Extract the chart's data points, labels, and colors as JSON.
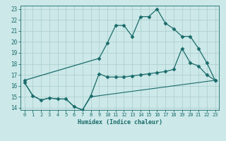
{
  "bg_color": "#cce8e8",
  "grid_color": "#aacccc",
  "line_color": "#1a6b6b",
  "xlabel": "Humidex (Indice chaleur)",
  "xlim": [
    -0.5,
    23.5
  ],
  "ylim": [
    13.8,
    23.3
  ],
  "yticks": [
    14,
    15,
    16,
    17,
    18,
    19,
    20,
    21,
    22,
    23
  ],
  "xticks": [
    0,
    1,
    2,
    3,
    4,
    5,
    6,
    7,
    8,
    9,
    10,
    11,
    12,
    13,
    14,
    15,
    16,
    17,
    18,
    19,
    20,
    21,
    22,
    23
  ],
  "line1_x": [
    0,
    9,
    10,
    11,
    12,
    13,
    14,
    15,
    16,
    17,
    18,
    19,
    20,
    21,
    22,
    23
  ],
  "line1_y": [
    16.5,
    18.5,
    19.9,
    21.5,
    21.5,
    20.5,
    22.3,
    22.3,
    23.0,
    21.7,
    21.2,
    20.5,
    20.5,
    19.4,
    18.1,
    16.5
  ],
  "line2_x": [
    0,
    1,
    2,
    3,
    4,
    5,
    6,
    7,
    8,
    9,
    10,
    11,
    12,
    13,
    14,
    15,
    16,
    17,
    18,
    19,
    20,
    21,
    22,
    23
  ],
  "line2_y": [
    16.3,
    15.1,
    14.7,
    14.9,
    14.8,
    14.8,
    14.1,
    13.8,
    15.1,
    17.1,
    16.8,
    16.8,
    16.8,
    16.9,
    17.0,
    17.1,
    17.2,
    17.3,
    17.5,
    19.4,
    18.1,
    17.8,
    17.0,
    16.5
  ],
  "line3_x": [
    0,
    1,
    2,
    3,
    4,
    5,
    6,
    7,
    8,
    9,
    10,
    11,
    12,
    13,
    14,
    15,
    16,
    17,
    18,
    19,
    20,
    21,
    22,
    23
  ],
  "line3_y": [
    16.3,
    15.1,
    14.7,
    14.9,
    14.8,
    14.8,
    14.1,
    13.8,
    15.0,
    15.1,
    15.2,
    15.3,
    15.4,
    15.5,
    15.6,
    15.7,
    15.8,
    15.9,
    16.0,
    16.1,
    16.2,
    16.3,
    16.4,
    16.5
  ]
}
